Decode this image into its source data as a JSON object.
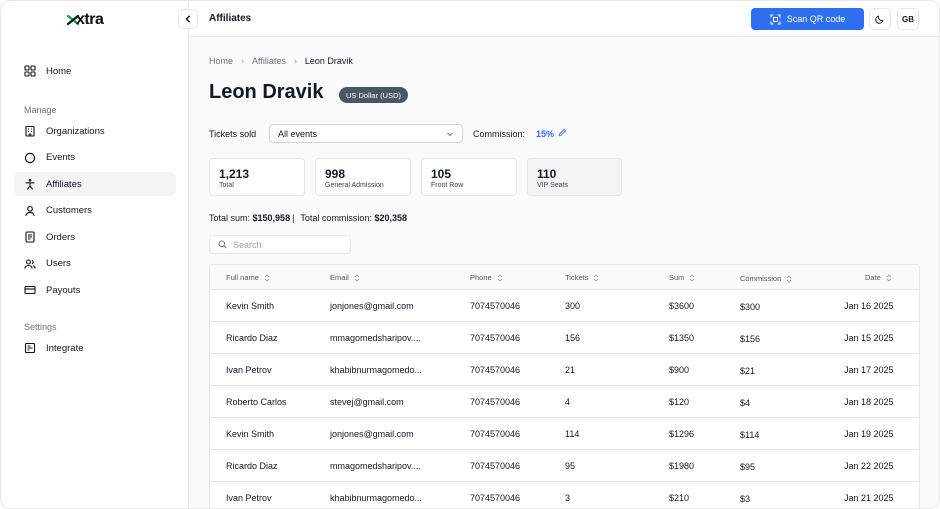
{
  "app": {
    "logo_text": "xtra",
    "page_title": "Affiliates"
  },
  "topbar": {
    "scan_label": "Scan QR code",
    "avatar_initials": "GB"
  },
  "sidebar": {
    "home": "Home",
    "manage_label": "Manage",
    "manage_items": [
      {
        "label": "Organizations",
        "icon": "building-icon"
      },
      {
        "label": "Events",
        "icon": "circle-icon"
      },
      {
        "label": "Affiliates",
        "icon": "person-icon"
      },
      {
        "label": "Customers",
        "icon": "user-icon"
      },
      {
        "label": "Orders",
        "icon": "orders-icon"
      },
      {
        "label": "Users",
        "icon": "users-icon"
      },
      {
        "label": "Payouts",
        "icon": "card-icon"
      }
    ],
    "settings_label": "Settings",
    "settings_items": [
      {
        "label": "Integrate",
        "icon": "integrate-icon"
      }
    ]
  },
  "breadcrumb": {
    "home": "Home",
    "section": "Affiliates",
    "current": "Leon Dravik"
  },
  "profile": {
    "name": "Leon Dravik",
    "currency": "US Dollar (USD)"
  },
  "filters": {
    "tickets_label": "Tickets sold",
    "tickets_value": "All events",
    "commission_label": "Commission:",
    "commission_value": "15%"
  },
  "stats": [
    {
      "value": "1,213",
      "label": "Total"
    },
    {
      "value": "998",
      "label": "General Admission"
    },
    {
      "value": "105",
      "label": "Front Row"
    },
    {
      "value": "110",
      "label": "VIP Seats"
    }
  ],
  "totals": {
    "sum_label": "Total sum:",
    "sum_value": "$150,958",
    "bar": "|",
    "commission_label": "Total commission:",
    "commission_value": "$20,358"
  },
  "search": {
    "placeholder": "Search"
  },
  "table": {
    "headers": [
      "Full name",
      "Email",
      "Phone",
      "Tickets",
      "Sum",
      "Commission",
      "Date"
    ],
    "rows": [
      [
        "Kevin Smith",
        "jonjones@gmail.com",
        "7074570046",
        "300",
        "$3600",
        "$300",
        "Jan 16 2025"
      ],
      [
        "Ricardo Diaz",
        "mmagomedsharipov....",
        "7074570046",
        "156",
        "$1350",
        "$156",
        "Jan 15 2025"
      ],
      [
        "Ivan Petrov",
        "khabibnurmagomedo...",
        "7074570046",
        "21",
        "$900",
        "$21",
        "Jan 17 2025"
      ],
      [
        "Roberto Carlos",
        "stevej@gmail.com",
        "7074570046",
        "4",
        "$120",
        "$4",
        "Jan 18 2025"
      ],
      [
        "Kevin Smith",
        "jonjones@gmail.com",
        "7074570046",
        "114",
        "$1296",
        "$114",
        "Jan 19 2025"
      ],
      [
        "Ricardo Diaz",
        "mmagomedsharipov....",
        "7074570046",
        "95",
        "$1980",
        "$95",
        "Jan 22 2025"
      ],
      [
        "Ivan Petrov",
        "khabibnurmagomedo...",
        "7074570046",
        "3",
        "$210",
        "$3",
        "Jan 21 2025"
      ]
    ]
  },
  "colors": {
    "accent": "#2f6fef",
    "logo_mark": "#16a34a",
    "badge": "#4b5563"
  }
}
